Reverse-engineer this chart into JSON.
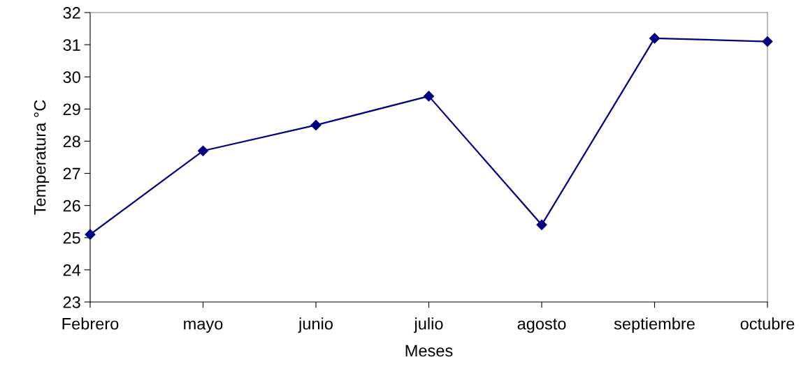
{
  "chart_data": {
    "type": "line",
    "xlabel": "Meses",
    "ylabel": "Temperatura °C",
    "categories": [
      "Febrero",
      "mayo",
      "junio",
      "julio",
      "agosto",
      "septiembre",
      "octubre"
    ],
    "series": [
      {
        "color": "#000080",
        "values": [
          25.1,
          27.7,
          28.5,
          29.4,
          25.4,
          31.2,
          31.1
        ]
      }
    ],
    "ylim": [
      23,
      32
    ],
    "yticks": [
      23,
      24,
      25,
      26,
      27,
      28,
      29,
      30,
      31,
      32
    ],
    "grid": false,
    "legend": false,
    "marker": "diamond",
    "line_style": "solid"
  }
}
